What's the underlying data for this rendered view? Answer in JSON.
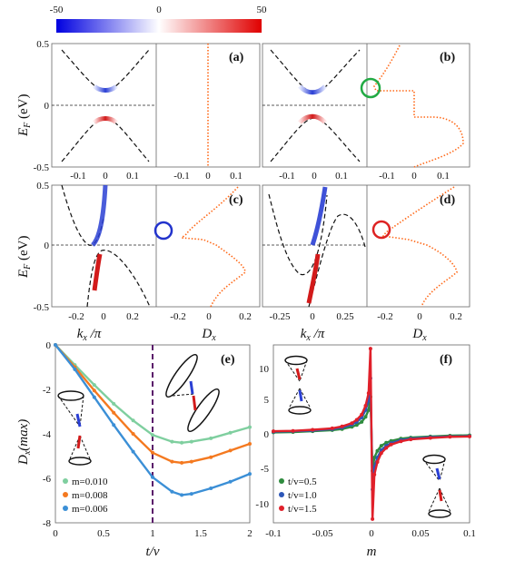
{
  "colorbar": {
    "min": "-50",
    "mid": "0",
    "max": "50",
    "colors": [
      "#0000e0",
      "#ffffff",
      "#e00000"
    ]
  },
  "colors": {
    "band_blue": "#2a3fd4",
    "band_red": "#d21a1a",
    "dx_dotted": "#ff6a1a",
    "circle_green": "#22aa44",
    "circle_blue": "#2233cc",
    "circle_red": "#dd2222",
    "vline": "#5a1a6a"
  },
  "panels": {
    "a": "(a)",
    "b": "(b)",
    "c": "(c)",
    "d": "(d)",
    "e": "(e)",
    "f": "(f)"
  },
  "axis_labels": {
    "ef_prefix": "E",
    "ef_sub": "F",
    "ef_suffix": " (eV)",
    "kx_prefix": "k",
    "kx_sub": "x",
    "kx_suffix": " /π",
    "dx_prefix": "D",
    "dx_sub": "x",
    "dxmax_prefix": "D",
    "dxmax_sub": "x",
    "dxmax_suffix": "(max)",
    "tv": "t/v",
    "m": "m"
  },
  "ticks": {
    "ef": [
      "0.5",
      "0",
      "-0.5"
    ],
    "k_top": [
      "-0.1",
      "0",
      "0.1"
    ],
    "dx_top": [
      "-0.1",
      "0",
      "0.1"
    ],
    "k_c": [
      "-0.2",
      "0",
      "0.2"
    ],
    "dx_c": [
      "-0.2",
      "0",
      "0.2"
    ],
    "k_d": [
      "-0.25",
      "0",
      "0.25"
    ],
    "dx_d": [
      "-0.2",
      "0",
      "0.2"
    ],
    "e_x": [
      "0",
      "0.5",
      "1",
      "1.5",
      "2"
    ],
    "e_y": [
      "0",
      "-2",
      "-4",
      "-6",
      "-8"
    ],
    "f_x": [
      "-0.1",
      "-0.05",
      "0",
      "0.05",
      "0.1"
    ],
    "f_y": [
      "10",
      "5",
      "0",
      "-5",
      "-10"
    ]
  },
  "chart_data": [
    {
      "type": "line",
      "panel": "(e)",
      "xlabel": "t/v",
      "ylabel": "Dx(max)",
      "xlim": [
        0,
        2
      ],
      "ylim": [
        -8,
        0
      ],
      "vline": 1,
      "series": [
        {
          "name": "m=0.010",
          "color": "#7fcf9f",
          "x": [
            0,
            0.2,
            0.4,
            0.6,
            0.8,
            1.0,
            1.2,
            1.3,
            1.4,
            1.6,
            1.8,
            2.0
          ],
          "y": [
            0,
            -0.9,
            -1.8,
            -2.65,
            -3.4,
            -4.05,
            -4.35,
            -4.4,
            -4.35,
            -4.2,
            -3.95,
            -3.7
          ]
        },
        {
          "name": "m=0.008",
          "color": "#f47920",
          "x": [
            0,
            0.2,
            0.4,
            0.6,
            0.8,
            1.0,
            1.2,
            1.3,
            1.4,
            1.6,
            1.8,
            2.0
          ],
          "y": [
            0,
            -1.0,
            -2.05,
            -3.05,
            -4.0,
            -4.85,
            -5.25,
            -5.3,
            -5.25,
            -5.05,
            -4.75,
            -4.45
          ]
        },
        {
          "name": "m=0.006",
          "color": "#3b8fd6",
          "x": [
            0,
            0.2,
            0.4,
            0.6,
            0.8,
            1.0,
            1.2,
            1.3,
            1.4,
            1.6,
            1.8,
            2.0
          ],
          "y": [
            0,
            -1.1,
            -2.35,
            -3.6,
            -4.8,
            -5.95,
            -6.6,
            -6.75,
            -6.7,
            -6.45,
            -6.15,
            -5.8
          ]
        }
      ]
    },
    {
      "type": "line",
      "panel": "(f)",
      "xlabel": "m",
      "xlim": [
        -0.1,
        0.1
      ],
      "ylim": [
        -12,
        12
      ],
      "series": [
        {
          "name": "t/v=0.5",
          "color": "#2e8b3e",
          "x": [
            -0.1,
            -0.08,
            -0.06,
            -0.04,
            -0.03,
            -0.02,
            -0.015,
            -0.01,
            -0.006,
            -0.003,
            -0.001,
            0.001,
            0.003,
            0.006,
            0.01,
            0.015,
            0.02,
            0.03,
            0.04,
            0.06,
            0.08,
            0.1
          ],
          "y": [
            0.2,
            0.25,
            0.35,
            0.5,
            0.65,
            0.95,
            1.2,
            1.6,
            2.3,
            3.2,
            5.0,
            -5.0,
            -3.2,
            -2.3,
            -1.6,
            -1.2,
            -0.95,
            -0.65,
            -0.5,
            -0.35,
            -0.25,
            -0.2
          ]
        },
        {
          "name": "t/v=1.0",
          "color": "#2c56b8",
          "x": [
            -0.1,
            -0.08,
            -0.06,
            -0.04,
            -0.03,
            -0.02,
            -0.015,
            -0.01,
            -0.006,
            -0.003,
            -0.001,
            0.001,
            0.003,
            0.006,
            0.01,
            0.015,
            0.02,
            0.03,
            0.04,
            0.06,
            0.08,
            0.1
          ],
          "y": [
            0.3,
            0.35,
            0.45,
            0.65,
            0.85,
            1.25,
            1.6,
            2.2,
            3.2,
            4.5,
            7.5,
            -7.5,
            -4.5,
            -3.2,
            -2.2,
            -1.6,
            -1.25,
            -0.85,
            -0.65,
            -0.45,
            -0.35,
            -0.3
          ]
        },
        {
          "name": "t/v=1.5",
          "color": "#e0202a",
          "x": [
            -0.1,
            -0.08,
            -0.06,
            -0.04,
            -0.03,
            -0.02,
            -0.015,
            -0.01,
            -0.006,
            -0.003,
            -0.001,
            0.001,
            0.003,
            0.006,
            0.01,
            0.015,
            0.02,
            0.03,
            0.04,
            0.06,
            0.08,
            0.1
          ],
          "y": [
            0.35,
            0.4,
            0.55,
            0.75,
            1.0,
            1.45,
            1.9,
            2.6,
            3.8,
            5.5,
            11.5,
            -11.5,
            -5.5,
            -3.8,
            -2.6,
            -1.9,
            -1.45,
            -1.0,
            -0.75,
            -0.55,
            -0.4,
            -0.35
          ]
        }
      ]
    }
  ]
}
